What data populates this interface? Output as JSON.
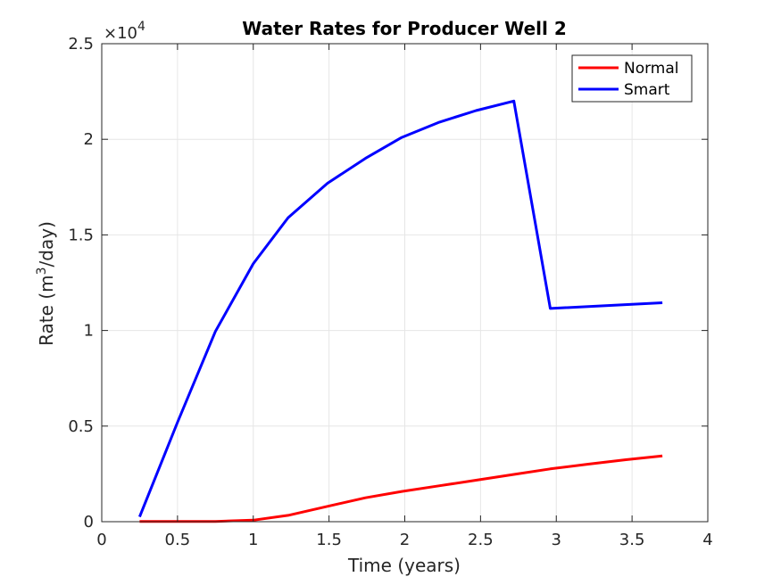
{
  "chart_data": {
    "type": "line",
    "title": "Water Rates for Producer Well 2",
    "xlabel": "Time (years)",
    "ylabel_prefix": "Rate (m",
    "ylabel_sup": "3",
    "ylabel_suffix": "/day)",
    "xlim": [
      0,
      4
    ],
    "ylim": [
      0,
      25000
    ],
    "x_ticks": [
      "0",
      "0.5",
      "1",
      "1.5",
      "2",
      "2.5",
      "3",
      "3.5",
      "4"
    ],
    "y_ticks": [
      "0",
      "0.5",
      "1",
      "1.5",
      "2",
      "2.5"
    ],
    "y_exponent_base": "×10",
    "y_exponent_power": "4",
    "grid": true,
    "legend_position": "top-right",
    "series": [
      {
        "name": "Normal",
        "color": "#ff0000",
        "x": [
          0.25,
          0.5,
          0.75,
          1.0,
          1.23,
          1.49,
          1.74,
          1.98,
          2.23,
          2.47,
          2.72,
          2.96,
          3.21,
          3.46,
          3.7
        ],
        "y": [
          10,
          10,
          15,
          80,
          330,
          800,
          1250,
          1580,
          1880,
          2170,
          2470,
          2760,
          3010,
          3240,
          3440
        ]
      },
      {
        "name": "Smart",
        "color": "#0000ff",
        "x": [
          0.25,
          0.5,
          0.75,
          1.0,
          1.23,
          1.49,
          1.74,
          1.98,
          2.23,
          2.47,
          2.72,
          2.96,
          3.7
        ],
        "y": [
          250,
          5200,
          9950,
          13500,
          15900,
          17700,
          19000,
          20100,
          20900,
          21500,
          22000,
          11150,
          11450
        ]
      }
    ]
  }
}
